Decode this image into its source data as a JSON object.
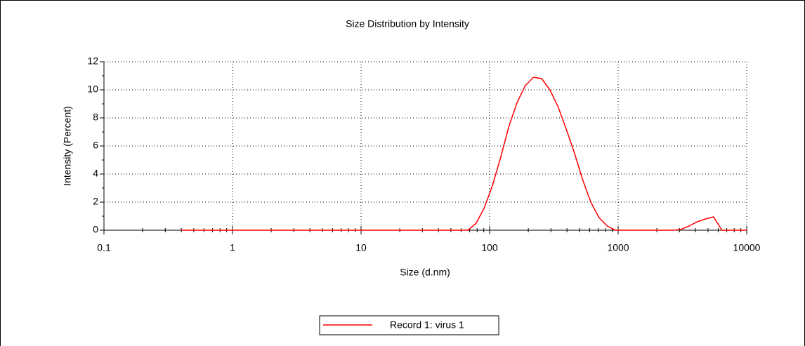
{
  "chart_data": {
    "type": "line",
    "title": "Size Distribution by Intensity",
    "x_label": "Size (d.nm)",
    "y_label": "Intensity (Percent)",
    "x_scale": "log",
    "x": [
      0.4,
      67.9,
      78.6,
      91.0,
      105.4,
      122.0,
      141.3,
      163.7,
      189.5,
      219.5,
      254.2,
      294.3,
      340.8,
      394.6,
      457.0,
      529.2,
      612.8,
      709.6,
      821.8,
      951.6,
      1102,
      2657,
      3077,
      3563,
      4126,
      4778,
      5533,
      6407,
      7420,
      8590,
      10000
    ],
    "series": [
      {
        "name": "Record 1: virus 1",
        "color": "#ff0000",
        "values": [
          0,
          0,
          0.5,
          1.6,
          3.2,
          5.2,
          7.4,
          9.1,
          10.3,
          10.9,
          10.8,
          10.0,
          8.8,
          7.2,
          5.5,
          3.6,
          2.0,
          0.9,
          0.3,
          0,
          0,
          0,
          0.05,
          0.3,
          0.6,
          0.8,
          0.95,
          0,
          0,
          0,
          0
        ]
      }
    ],
    "xlim": [
      0.1,
      10000
    ],
    "xticks": [
      0.1,
      1,
      10,
      100,
      1000,
      10000
    ],
    "ylim": [
      0,
      12
    ],
    "yticks": [
      0,
      2,
      4,
      6,
      8,
      10,
      12
    ],
    "grid": true,
    "legend": "bottom"
  }
}
